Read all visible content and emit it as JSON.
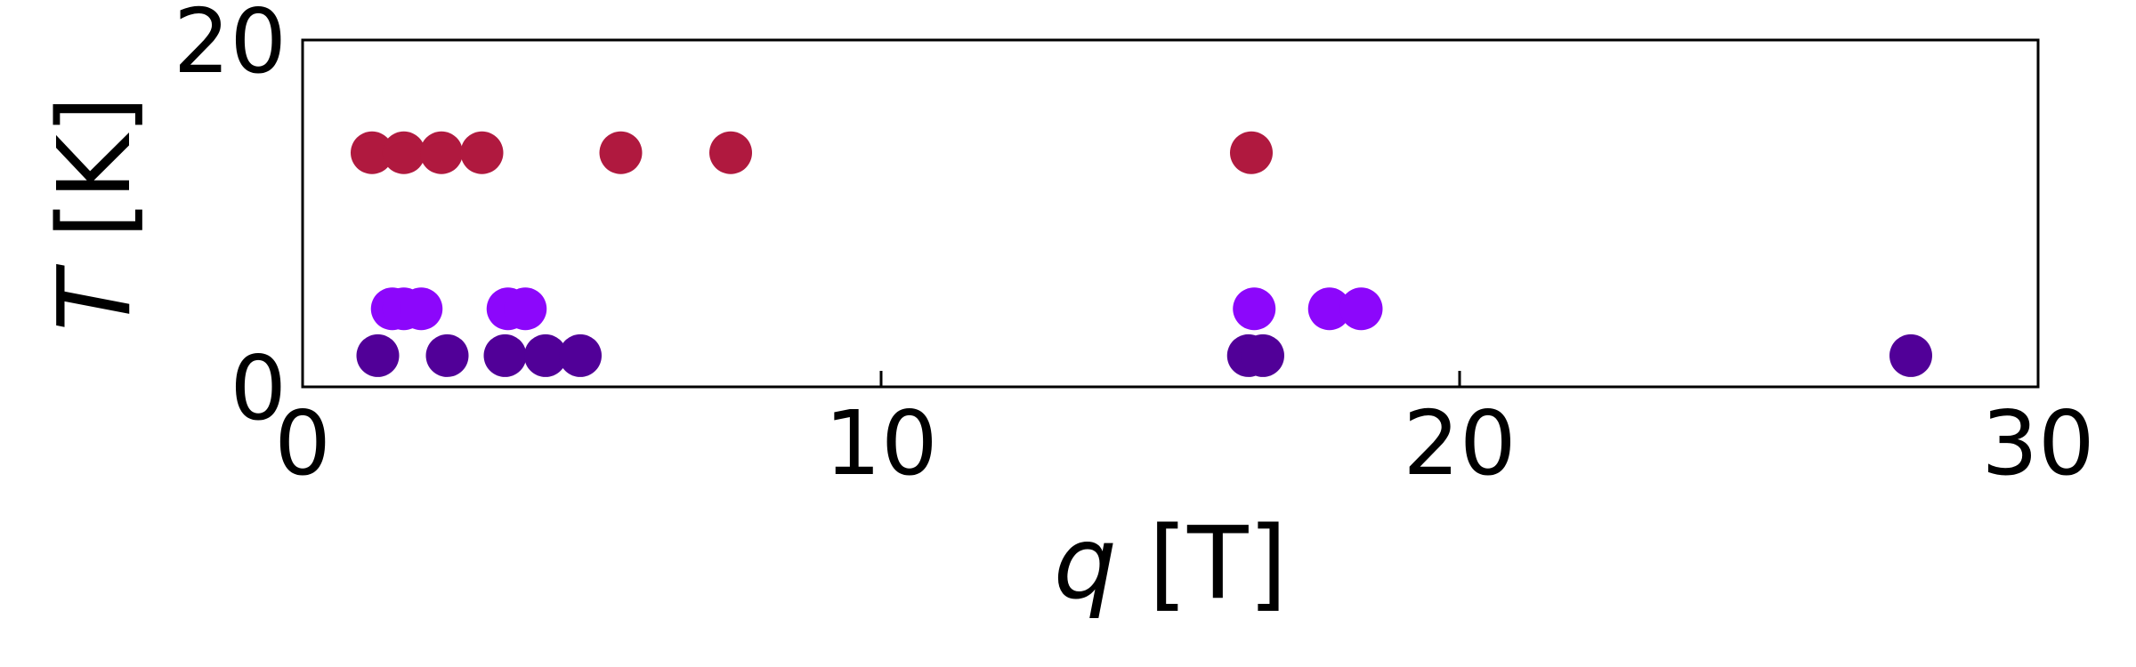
{
  "chart_data": {
    "type": "scatter",
    "xlabel_var": "q",
    "xlabel_unit": "[T]",
    "ylabel_var": "T",
    "ylabel_unit": "[K]",
    "xlim": [
      0,
      30
    ],
    "ylim": [
      0,
      20
    ],
    "xticks": [
      0,
      10,
      20,
      30
    ],
    "yticks": [
      0,
      20
    ],
    "xtick_labels": [
      "0",
      "10",
      "20",
      "30"
    ],
    "ytick_labels": [
      "0",
      "20"
    ],
    "grid": false,
    "series": [
      {
        "color": "#b0193f",
        "x": [
          1.2,
          1.75,
          2.4,
          3.1,
          5.5,
          7.4,
          16.4
        ],
        "y": [
          13.5,
          13.5,
          13.5,
          13.5,
          13.5,
          13.5,
          13.5
        ]
      },
      {
        "color": "#8c07fb",
        "x": [
          1.55,
          1.75,
          2.05,
          3.55,
          3.85,
          16.45,
          17.75,
          18.3
        ],
        "y": [
          4.5,
          4.5,
          4.5,
          4.5,
          4.5,
          4.5,
          4.5,
          4.5
        ]
      },
      {
        "color": "#510098",
        "x": [
          1.3,
          2.5,
          3.5,
          4.2,
          4.8,
          16.35,
          16.6,
          27.8
        ],
        "y": [
          1.8,
          1.8,
          1.8,
          1.8,
          1.8,
          1.8,
          1.8,
          1.8
        ]
      }
    ]
  }
}
